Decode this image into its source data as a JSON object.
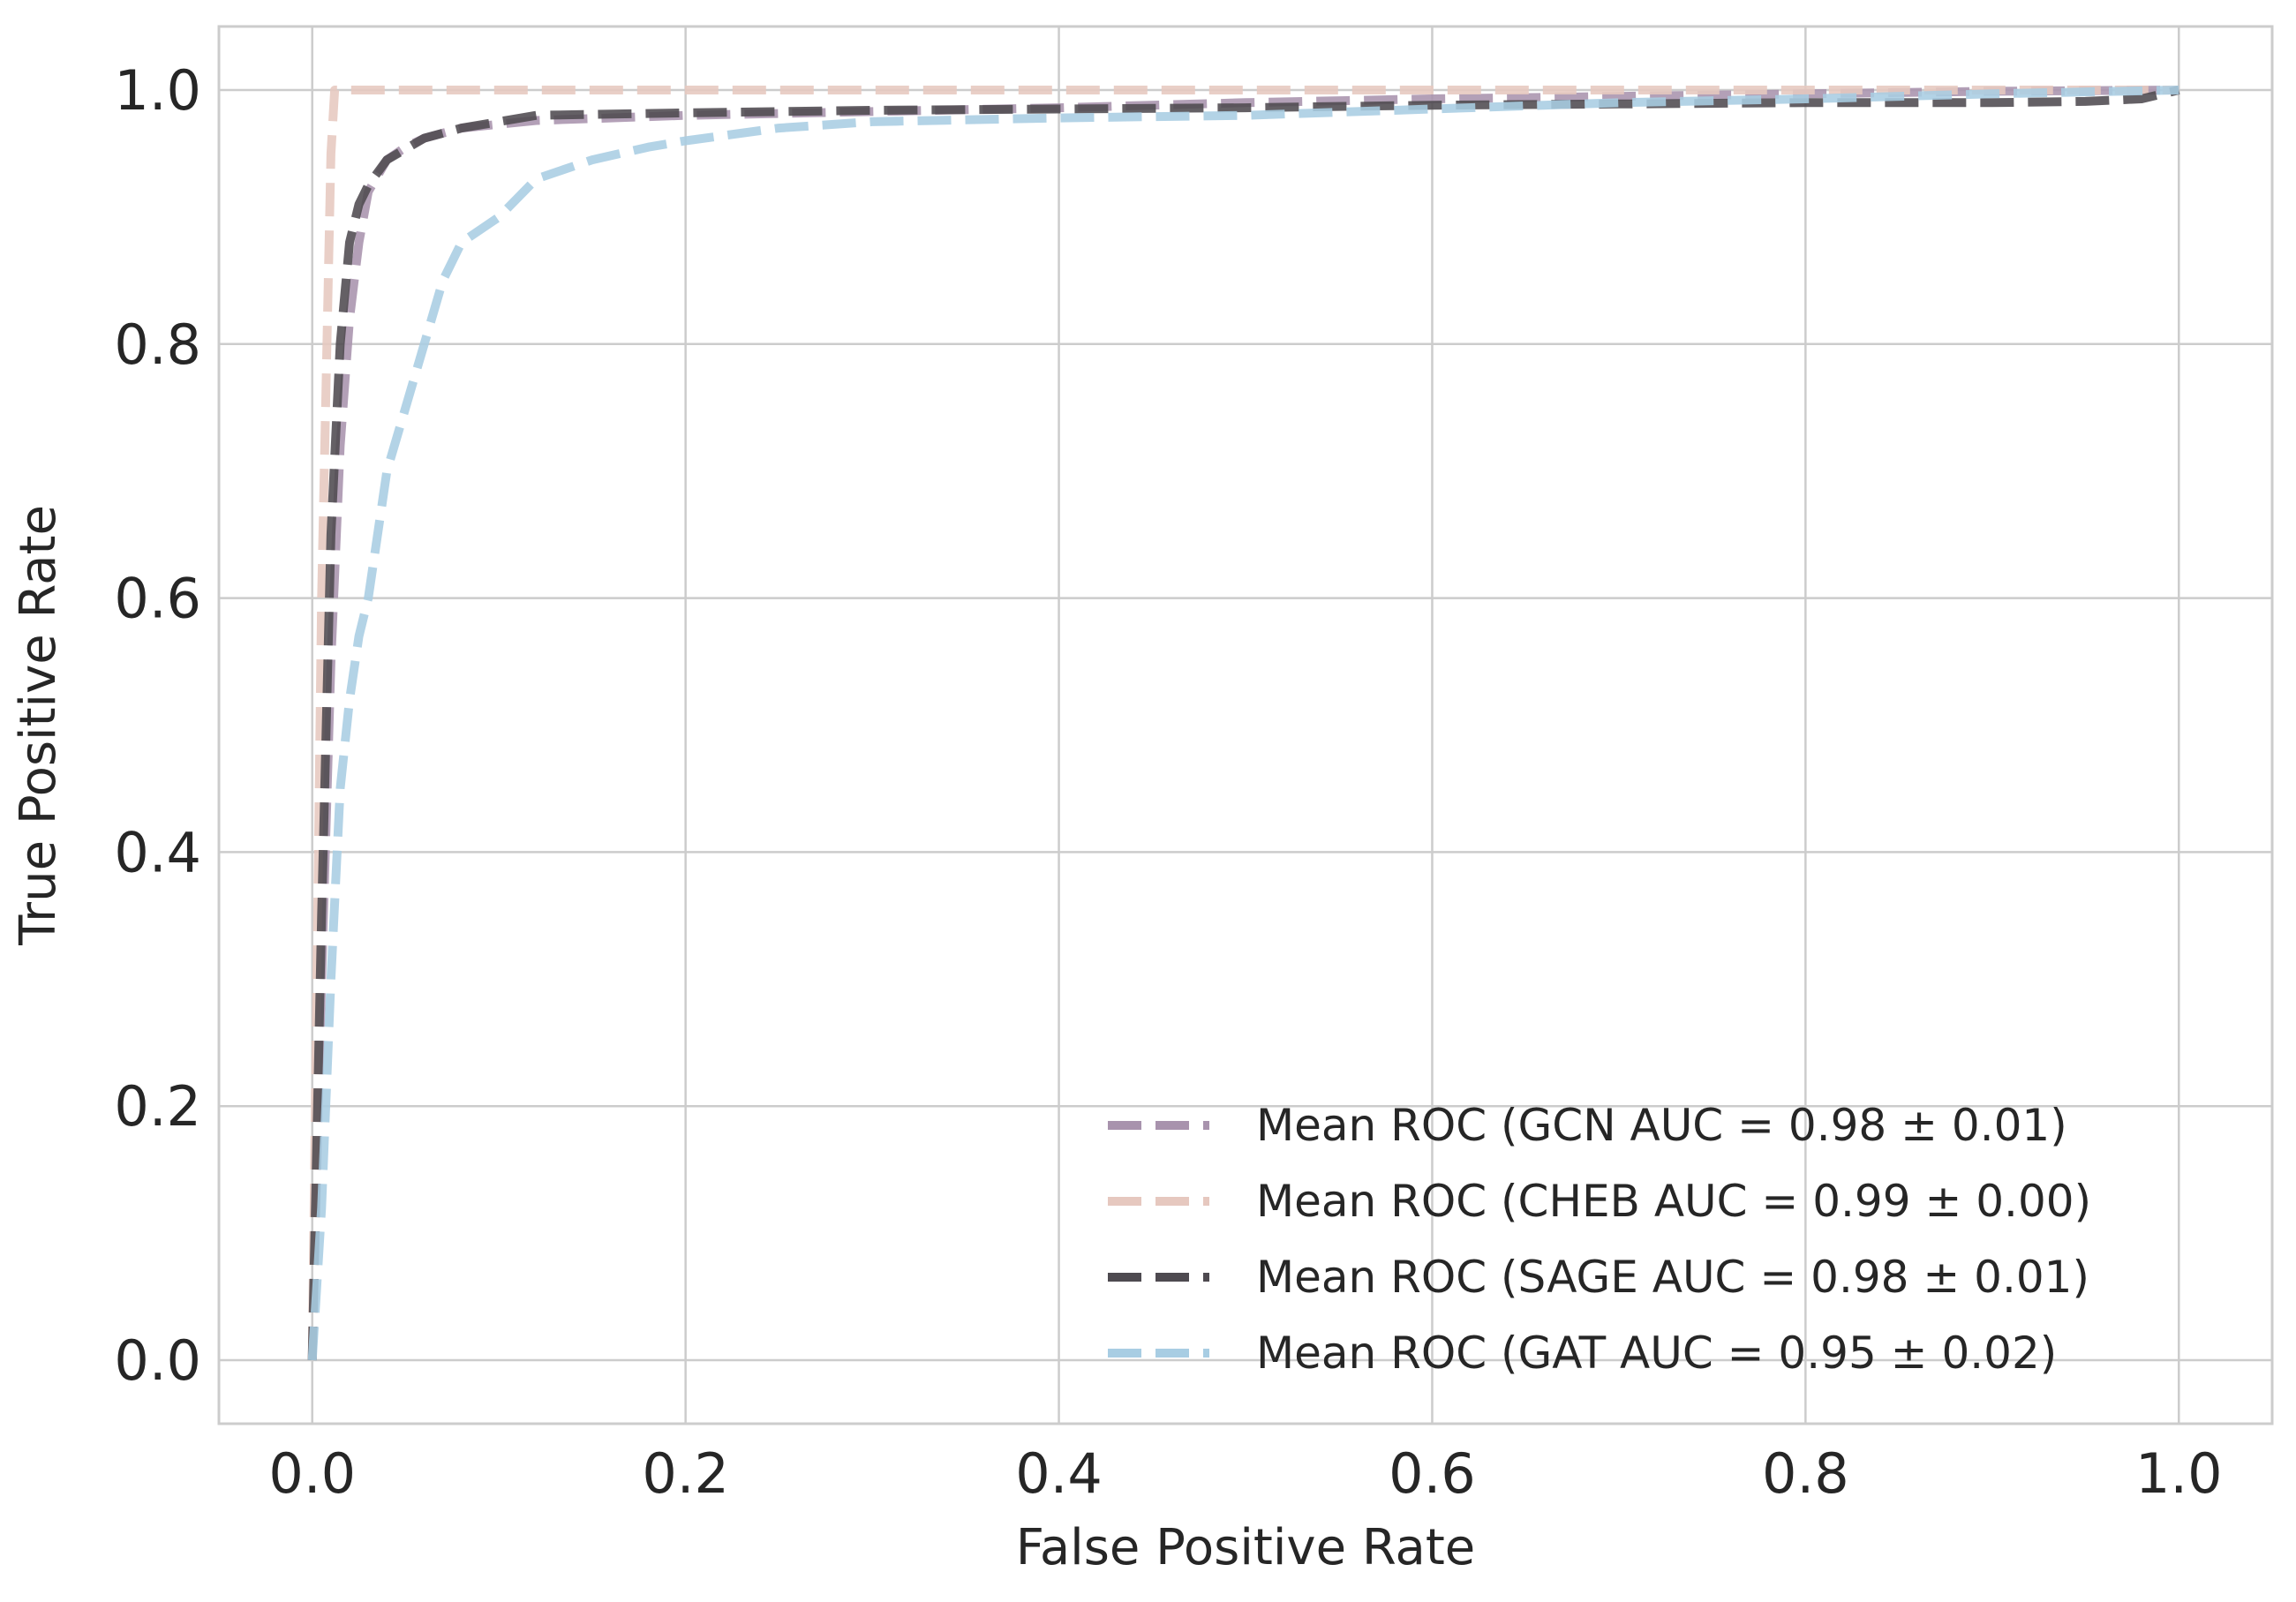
{
  "chart_data": {
    "type": "line",
    "xlabel": "False Positive Rate",
    "ylabel": "True Positive Rate",
    "xlim": [
      -0.05,
      1.05
    ],
    "ylim": [
      -0.05,
      1.05
    ],
    "xticks": [
      0.0,
      0.2,
      0.4,
      0.6,
      0.8,
      1.0
    ],
    "yticks": [
      0.0,
      0.2,
      0.4,
      0.6,
      0.8,
      1.0
    ],
    "xtick_labels": [
      "0.0",
      "0.2",
      "0.4",
      "0.6",
      "0.8",
      "1.0"
    ],
    "ytick_labels": [
      "0.0",
      "0.2",
      "0.4",
      "0.6",
      "0.8",
      "1.0"
    ],
    "grid": true,
    "legend_position": "lower-right",
    "series": [
      {
        "name": "Mean ROC (GCN AUC = 0.98 ± 0.01)",
        "color": "#a893ad",
        "dash": "dashed",
        "x": [
          0.0,
          0.005,
          0.01,
          0.015,
          0.02,
          0.025,
          0.03,
          0.04,
          0.05,
          0.06,
          0.08,
          0.1,
          0.12,
          0.2,
          0.3,
          0.4,
          0.5,
          0.6,
          0.7,
          0.8,
          0.9,
          1.0
        ],
        "y": [
          0.0,
          0.3,
          0.55,
          0.72,
          0.82,
          0.88,
          0.92,
          0.945,
          0.955,
          0.962,
          0.97,
          0.973,
          0.976,
          0.98,
          0.983,
          0.986,
          0.99,
          0.993,
          0.995,
          0.997,
          0.999,
          1.0
        ]
      },
      {
        "name": "Mean ROC (CHEB AUC = 0.99 ± 0.00)",
        "color": "#e6c8bf",
        "dash": "dashed",
        "x": [
          0.0,
          0.005,
          0.01,
          0.012,
          0.02,
          0.2,
          0.4,
          0.6,
          0.8,
          1.0
        ],
        "y": [
          0.0,
          0.6,
          0.95,
          1.0,
          1.0,
          1.0,
          1.0,
          1.0,
          1.0,
          1.0
        ]
      },
      {
        "name": "Mean ROC (SAGE AUC = 0.98 ± 0.01)",
        "color": "#4e4a50",
        "dash": "dashed",
        "x": [
          0.0,
          0.005,
          0.01,
          0.015,
          0.02,
          0.025,
          0.03,
          0.04,
          0.06,
          0.08,
          0.1,
          0.12,
          0.2,
          0.3,
          0.4,
          0.5,
          0.6,
          0.7,
          0.8,
          0.9,
          0.95,
          0.98,
          1.0
        ],
        "y": [
          0.0,
          0.35,
          0.65,
          0.8,
          0.88,
          0.91,
          0.925,
          0.945,
          0.962,
          0.97,
          0.975,
          0.98,
          0.982,
          0.984,
          0.985,
          0.986,
          0.988,
          0.989,
          0.99,
          0.99,
          0.991,
          0.993,
          1.0
        ]
      },
      {
        "name": "Mean ROC (GAT AUC = 0.95 ± 0.02)",
        "color": "#a8cde3",
        "dash": "dashed",
        "x": [
          0.0,
          0.005,
          0.01,
          0.015,
          0.02,
          0.025,
          0.03,
          0.04,
          0.05,
          0.06,
          0.07,
          0.08,
          0.1,
          0.12,
          0.15,
          0.18,
          0.2,
          0.25,
          0.3,
          0.4,
          0.5,
          0.6,
          0.7,
          0.8,
          0.9,
          1.0
        ],
        "y": [
          0.0,
          0.12,
          0.3,
          0.45,
          0.52,
          0.57,
          0.6,
          0.7,
          0.75,
          0.8,
          0.85,
          0.88,
          0.9,
          0.93,
          0.945,
          0.955,
          0.96,
          0.97,
          0.975,
          0.978,
          0.98,
          0.985,
          0.99,
          0.993,
          0.997,
          1.0
        ]
      }
    ]
  }
}
